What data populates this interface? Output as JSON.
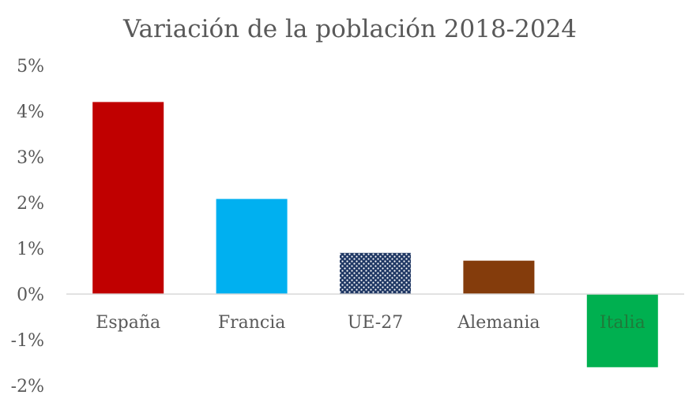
{
  "chart_data": {
    "type": "bar",
    "title": "Variación de la población 2018-2024",
    "xlabel": "",
    "ylabel": "",
    "ylim": [
      -2,
      5
    ],
    "yticks": [
      "5%",
      "4%",
      "3%",
      "2%",
      "1%",
      "0%",
      "-1%",
      "-2%"
    ],
    "ytick_values": [
      5,
      4,
      3,
      2,
      1,
      0,
      -1,
      -2
    ],
    "categories": [
      "España",
      "Francia",
      "UE-27",
      "Alemania",
      "Italia"
    ],
    "values": [
      4.2,
      2.08,
      0.9,
      0.73,
      -1.6
    ],
    "colors": [
      "#C00000",
      "#00B0F0",
      "#203864",
      "#843C0C",
      "#00B050"
    ],
    "patterns": [
      "solid",
      "solid",
      "dotted",
      "solid",
      "solid"
    ],
    "label_colors": [
      "#595959",
      "#595959",
      "#595959",
      "#595959",
      "#1F7A3A"
    ],
    "grid": false,
    "legend": "none"
  }
}
